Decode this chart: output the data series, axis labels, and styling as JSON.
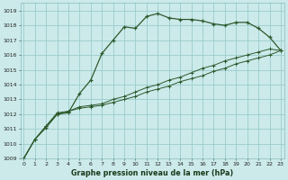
{
  "xlabel": "Graphe pression niveau de la mer (hPa)",
  "background_color": "#cceaea",
  "grid_color": "#99cccc",
  "line_color": "#2d5a2d",
  "ylim": [
    1009.0,
    1019.5
  ],
  "xlim": [
    -0.3,
    23.3
  ],
  "yticks": [
    1009,
    1010,
    1011,
    1012,
    1013,
    1014,
    1015,
    1016,
    1017,
    1018,
    1019
  ],
  "xticks": [
    0,
    1,
    2,
    3,
    4,
    5,
    6,
    7,
    8,
    9,
    10,
    11,
    12,
    13,
    14,
    15,
    16,
    17,
    18,
    19,
    20,
    21,
    22,
    23
  ],
  "line1_x": [
    0,
    1,
    2,
    3,
    4,
    5,
    6,
    7,
    8,
    9,
    10,
    11,
    12,
    13,
    14,
    15,
    16,
    17,
    18,
    19,
    20,
    21,
    22,
    23
  ],
  "line1_y": [
    1009.0,
    1010.3,
    1011.1,
    1012.0,
    1012.1,
    1013.4,
    1014.3,
    1016.1,
    1017.0,
    1017.9,
    1017.8,
    1018.6,
    1018.8,
    1018.5,
    1018.4,
    1018.4,
    1018.3,
    1018.1,
    1018.0,
    1018.2,
    1018.2,
    1017.8,
    1017.2,
    1016.3
  ],
  "line2_x": [
    0,
    1,
    2,
    3,
    4,
    5,
    6,
    7,
    8,
    9,
    10,
    11,
    12,
    13,
    14,
    15,
    16,
    17,
    18,
    19,
    20,
    21,
    22,
    23
  ],
  "line2_y": [
    1009.0,
    1010.3,
    1011.2,
    1012.0,
    1012.2,
    1012.4,
    1012.5,
    1012.6,
    1012.8,
    1013.0,
    1013.2,
    1013.5,
    1013.7,
    1013.9,
    1014.2,
    1014.4,
    1014.6,
    1014.9,
    1015.1,
    1015.4,
    1015.6,
    1015.8,
    1016.0,
    1016.3
  ],
  "line3_x": [
    0,
    1,
    2,
    3,
    4,
    5,
    6,
    7,
    8,
    9,
    10,
    11,
    12,
    13,
    14,
    15,
    16,
    17,
    18,
    19,
    20,
    21,
    22,
    23
  ],
  "line3_y": [
    1009.0,
    1010.3,
    1011.2,
    1012.1,
    1012.2,
    1012.5,
    1012.6,
    1012.7,
    1013.0,
    1013.2,
    1013.5,
    1013.8,
    1014.0,
    1014.3,
    1014.5,
    1014.8,
    1015.1,
    1015.3,
    1015.6,
    1015.8,
    1016.0,
    1016.2,
    1016.4,
    1016.3
  ],
  "tick_fontsize": 4.5,
  "xlabel_fontsize": 5.8
}
